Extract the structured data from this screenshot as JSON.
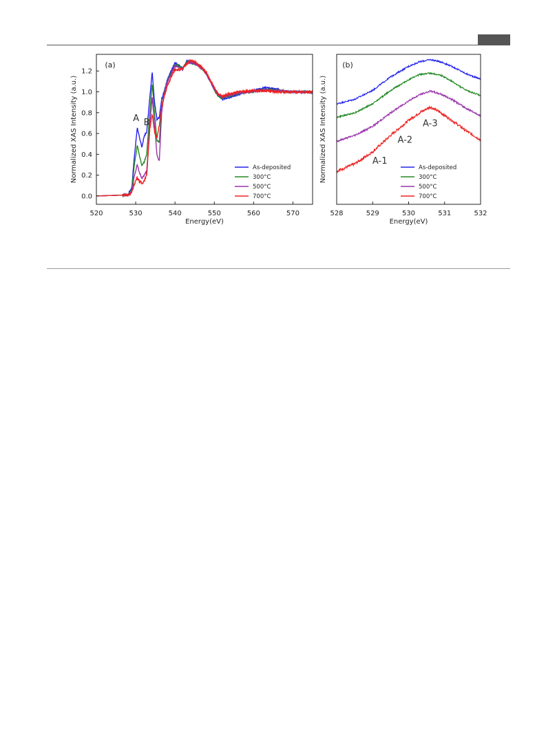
{
  "chart_data": [
    {
      "type": "line",
      "panel": "(a)",
      "xlabel": "Energy(eV)",
      "ylabel": "Normalized XAS Intensity (a.u.)",
      "xlim": [
        520,
        575
      ],
      "ylim": [
        -0.08,
        1.36
      ],
      "xticks": [
        520,
        530,
        540,
        550,
        560,
        570
      ],
      "yticks": [
        "0.0",
        "0.2",
        "0.4",
        "0.6",
        "0.8",
        "1.0",
        "1.2"
      ],
      "grid": false,
      "legend_position": "bottom-right",
      "annotations": [
        {
          "text": "A",
          "x": 530.1,
          "y": 0.72
        },
        {
          "text": "B",
          "x": 532.8,
          "y": 0.68
        }
      ],
      "series": [
        {
          "name": "As-deposited",
          "color": "#2222ee",
          "noise": 0.008,
          "x": [
            520,
            528,
            529,
            529.6,
            530.4,
            531,
            531.6,
            532.2,
            532.8,
            533.6,
            534.2,
            534.8,
            535.4,
            536.0,
            536.6,
            537.2,
            538,
            539,
            540,
            541,
            542,
            543,
            544,
            545,
            546,
            547,
            548,
            549,
            550,
            551,
            552,
            553,
            555,
            557,
            559,
            561,
            563,
            565,
            567,
            569,
            571,
            573,
            575
          ],
          "y": [
            0.0,
            0.01,
            0.08,
            0.35,
            0.66,
            0.55,
            0.47,
            0.58,
            0.61,
            0.95,
            1.19,
            0.9,
            0.74,
            0.75,
            0.93,
            1.0,
            1.11,
            1.2,
            1.28,
            1.25,
            1.22,
            1.3,
            1.28,
            1.27,
            1.25,
            1.22,
            1.17,
            1.1,
            1.02,
            0.96,
            0.93,
            0.94,
            0.96,
            0.99,
            1.0,
            1.02,
            1.04,
            1.03,
            1.02,
            1.0,
            1.0,
            1.0,
            0.99
          ]
        },
        {
          "name": "300°C",
          "color": "#228822",
          "noise": 0.008,
          "x": [
            520,
            528,
            529,
            529.6,
            530.4,
            531,
            531.6,
            532.2,
            532.8,
            533.6,
            534.2,
            534.8,
            535.4,
            536.0,
            536.6,
            537.2,
            538,
            539,
            540,
            541,
            542,
            543,
            544,
            545,
            546,
            547,
            548,
            549,
            550,
            551,
            552,
            553,
            555,
            557,
            559,
            561,
            563,
            565,
            567,
            569,
            571,
            573,
            575
          ],
          "y": [
            0.0,
            0.01,
            0.06,
            0.28,
            0.49,
            0.38,
            0.29,
            0.33,
            0.4,
            0.8,
            1.08,
            0.8,
            0.53,
            0.52,
            0.85,
            0.98,
            1.1,
            1.18,
            1.26,
            1.24,
            1.23,
            1.29,
            1.28,
            1.27,
            1.25,
            1.22,
            1.17,
            1.1,
            1.02,
            0.96,
            0.94,
            0.95,
            0.97,
            0.99,
            1.0,
            1.01,
            1.02,
            1.02,
            1.01,
            1.0,
            1.0,
            1.0,
            0.99
          ]
        },
        {
          "name": "500°C",
          "color": "#9933aa",
          "noise": 0.008,
          "x": [
            520,
            528,
            529,
            529.6,
            530.4,
            531,
            531.6,
            532.2,
            532.8,
            533.6,
            534.2,
            534.8,
            535.4,
            536.0,
            536.6,
            537.2,
            538,
            539,
            540,
            541,
            542,
            543,
            544,
            545,
            546,
            547,
            548,
            549,
            550,
            551,
            552,
            553,
            555,
            557,
            559,
            561,
            563,
            565,
            567,
            569,
            571,
            573,
            575
          ],
          "y": [
            0.0,
            0.01,
            0.04,
            0.18,
            0.3,
            0.22,
            0.17,
            0.2,
            0.24,
            0.7,
            0.95,
            0.68,
            0.4,
            0.33,
            0.8,
            0.97,
            1.09,
            1.17,
            1.25,
            1.23,
            1.22,
            1.28,
            1.28,
            1.27,
            1.25,
            1.22,
            1.17,
            1.1,
            1.03,
            0.97,
            0.95,
            0.96,
            0.98,
            0.99,
            1.0,
            1.01,
            1.02,
            1.01,
            1.01,
            1.0,
            1.0,
            1.0,
            0.99
          ]
        },
        {
          "name": "700°C",
          "color": "#ee2222",
          "noise": 0.012,
          "x": [
            520,
            528,
            529,
            529.6,
            530.4,
            531,
            531.6,
            532.2,
            532.8,
            533.6,
            534.2,
            534.8,
            535.4,
            536.0,
            536.6,
            537.2,
            538,
            539,
            540,
            541,
            542,
            543,
            544,
            545,
            546,
            547,
            548,
            549,
            550,
            551,
            552,
            553,
            555,
            557,
            559,
            561,
            563,
            565,
            567,
            569,
            571,
            573,
            575
          ],
          "y": [
            0.0,
            0.01,
            0.03,
            0.11,
            0.18,
            0.14,
            0.12,
            0.15,
            0.2,
            0.65,
            0.78,
            0.62,
            0.55,
            0.68,
            0.85,
            0.95,
            1.05,
            1.14,
            1.22,
            1.21,
            1.22,
            1.27,
            1.3,
            1.29,
            1.26,
            1.23,
            1.18,
            1.11,
            1.04,
            0.98,
            0.96,
            0.97,
            0.99,
            1.0,
            1.01,
            1.01,
            1.01,
            1.0,
            1.0,
            1.0,
            1.0,
            1.0,
            1.0
          ]
        }
      ]
    },
    {
      "type": "line",
      "panel": "(b)",
      "xlabel": "Energy(eV)",
      "ylabel": "Normalized XAS Intensity (a.u.)",
      "xlim": [
        528,
        532
      ],
      "ylim": [
        0,
        1
      ],
      "xticks": [
        528,
        529,
        530,
        531,
        532
      ],
      "yticks": [],
      "grid": false,
      "legend_position": "bottom-right",
      "annotations": [
        {
          "text": "A-1",
          "x": 529.2,
          "y": 0.27
        },
        {
          "text": "A-2",
          "x": 529.9,
          "y": 0.41
        },
        {
          "text": "A-3",
          "x": 530.6,
          "y": 0.52
        }
      ],
      "series": [
        {
          "name": "As-deposited",
          "color": "#2222ee",
          "noise": 0.005,
          "x": [
            528,
            528.5,
            529,
            529.5,
            530,
            530.3,
            530.6,
            530.9,
            531.2,
            531.6,
            532
          ],
          "y": [
            0.67,
            0.7,
            0.76,
            0.85,
            0.92,
            0.95,
            0.965,
            0.95,
            0.92,
            0.87,
            0.835
          ]
        },
        {
          "name": "300°C",
          "color": "#228822",
          "noise": 0.005,
          "x": [
            528,
            528.5,
            529,
            529.5,
            530,
            530.3,
            530.6,
            530.9,
            531.2,
            531.6,
            532
          ],
          "y": [
            0.58,
            0.61,
            0.67,
            0.76,
            0.83,
            0.865,
            0.875,
            0.86,
            0.82,
            0.76,
            0.725
          ]
        },
        {
          "name": "500°C",
          "color": "#9933aa",
          "noise": 0.006,
          "x": [
            528,
            528.5,
            529,
            529.5,
            530,
            530.3,
            530.6,
            530.9,
            531.2,
            531.6,
            532
          ],
          "y": [
            0.42,
            0.46,
            0.52,
            0.61,
            0.69,
            0.73,
            0.755,
            0.735,
            0.7,
            0.64,
            0.59
          ]
        },
        {
          "name": "700°C",
          "color": "#ee2222",
          "noise": 0.009,
          "x": [
            528,
            528.5,
            529,
            529.5,
            530,
            530.3,
            530.6,
            530.9,
            531.2,
            531.6,
            532
          ],
          "y": [
            0.22,
            0.27,
            0.35,
            0.46,
            0.56,
            0.61,
            0.65,
            0.61,
            0.56,
            0.49,
            0.43
          ]
        }
      ]
    }
  ]
}
